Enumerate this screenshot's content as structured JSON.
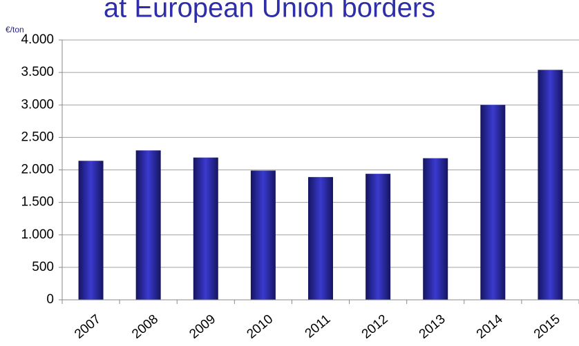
{
  "chart_data": {
    "type": "bar",
    "title": "at European Union borders",
    "y_label": "€/ton",
    "categories": [
      "2007",
      "2008",
      "2009",
      "2010",
      "2011",
      "2012",
      "2013",
      "2014",
      "2015"
    ],
    "values": [
      2140,
      2300,
      2190,
      1990,
      1890,
      1940,
      2180,
      3000,
      3540
    ],
    "color": "#2b2bb0",
    "ylim": [
      0,
      4000
    ],
    "yticks": [
      0,
      500,
      {
        "value": 1000,
        "label": "1.000"
      },
      {
        "value": 1500,
        "label": "1.500"
      },
      {
        "value": 2000,
        "label": "2.000"
      },
      {
        "value": 2500,
        "label": "2.500"
      },
      {
        "value": 3000,
        "label": "3.000"
      },
      {
        "value": 3500,
        "label": "3.500"
      },
      {
        "value": 4000,
        "label": "4.000"
      }
    ],
    "grid": true
  }
}
